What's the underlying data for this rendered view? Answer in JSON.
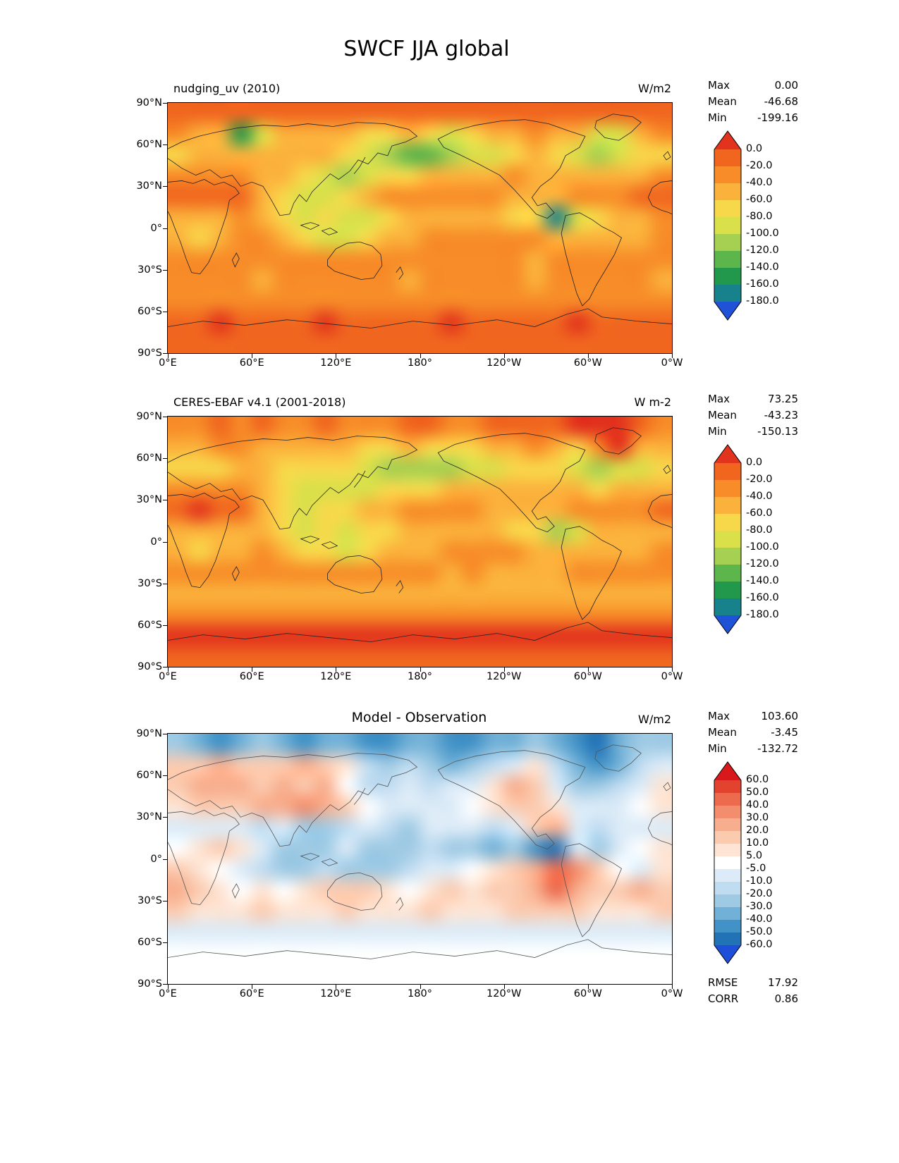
{
  "figure_title": "SWCF JJA global",
  "axes": {
    "yticks": [
      {
        "label": "90°N",
        "pos": 0
      },
      {
        "label": "60°N",
        "pos": 0.1667
      },
      {
        "label": "30°N",
        "pos": 0.3333
      },
      {
        "label": "0°",
        "pos": 0.5
      },
      {
        "label": "30°S",
        "pos": 0.6667
      },
      {
        "label": "60°S",
        "pos": 0.8333
      },
      {
        "label": "90°S",
        "pos": 1
      }
    ],
    "xticks": [
      {
        "label": "0°E",
        "pos": 0
      },
      {
        "label": "60°E",
        "pos": 0.1667
      },
      {
        "label": "120°E",
        "pos": 0.3333
      },
      {
        "label": "180°",
        "pos": 0.5
      },
      {
        "label": "120°W",
        "pos": 0.6667
      },
      {
        "label": "60°W",
        "pos": 0.8333
      },
      {
        "label": "0°W",
        "pos": 1
      }
    ]
  },
  "chart_data": [
    {
      "type": "heatmap",
      "title": "nudging_uv (2010)",
      "units": "W/m2",
      "projection": "equirectangular",
      "lon_range": [
        0,
        360
      ],
      "lat_range": [
        90,
        -90
      ],
      "stats_labels": {
        "max": "Max",
        "mean": "Mean",
        "min": "Min"
      },
      "stats": {
        "max": "0.00",
        "mean": "-46.68",
        "min": "-199.16"
      },
      "colorbar": {
        "extend": "both",
        "levels": [
          0,
          -20,
          -40,
          -60,
          -80,
          -100,
          -120,
          -140,
          -160,
          -180
        ],
        "colors": [
          "#e2331e",
          "#f0661f",
          "#f78c28",
          "#fbb23c",
          "#f8d84b",
          "#d9e04a",
          "#a6d051",
          "#5cb64c",
          "#22984c",
          "#17828c",
          "#2052d8"
        ]
      },
      "grid": {
        "lon_step": 15,
        "lat_step": 15,
        "values": [
          [
            -15,
            -14,
            -16,
            -18,
            -15,
            -14,
            -16,
            -15,
            -17,
            -20,
            -16,
            -13,
            -14,
            -16,
            -18,
            -15,
            -14,
            -16,
            -18,
            -15,
            -14,
            -15,
            -13,
            -15
          ],
          [
            -35,
            -45,
            -60,
            -150,
            -90,
            -55,
            -45,
            -50,
            -60,
            -75,
            -65,
            -55,
            -80,
            -95,
            -70,
            -55,
            -45,
            -40,
            -50,
            -60,
            -90,
            -100,
            -60,
            -40
          ],
          [
            -65,
            -55,
            -48,
            -45,
            -42,
            -46,
            -52,
            -58,
            -75,
            -95,
            -115,
            -125,
            -130,
            -120,
            -100,
            -85,
            -65,
            -55,
            -70,
            -90,
            -110,
            -100,
            -80,
            -70
          ],
          [
            -30,
            -26,
            -24,
            -30,
            -42,
            -55,
            -72,
            -92,
            -102,
            -82,
            -70,
            -62,
            -60,
            -55,
            -50,
            -46,
            -40,
            -46,
            -52,
            -56,
            -60,
            -54,
            -44,
            -35
          ],
          [
            -14,
            -12,
            -14,
            -20,
            -58,
            -80,
            -92,
            -82,
            -62,
            -46,
            -40,
            -35,
            -34,
            -30,
            -34,
            -40,
            -50,
            -60,
            -46,
            -34,
            -30,
            -25,
            -20,
            -15
          ],
          [
            -50,
            -55,
            -45,
            -40,
            -50,
            -70,
            -90,
            -80,
            -92,
            -85,
            -70,
            -60,
            -55,
            -50,
            -55,
            -60,
            -70,
            -80,
            -170,
            -90,
            -62,
            -50,
            -45,
            -40
          ],
          [
            -52,
            -62,
            -50,
            -40,
            -35,
            -42,
            -62,
            -82,
            -92,
            -72,
            -55,
            -45,
            -40,
            -34,
            -30,
            -30,
            -34,
            -40,
            -55,
            -50,
            -46,
            -52,
            -42,
            -35
          ],
          [
            -30,
            -34,
            -30,
            -26,
            -25,
            -30,
            -34,
            -30,
            -26,
            -22,
            -25,
            -30,
            -30,
            -34,
            -30,
            -34,
            -40,
            -44,
            -38,
            -30,
            -34,
            -30,
            -26,
            -30
          ],
          [
            -40,
            -38,
            -36,
            -40,
            -42,
            -40,
            -38,
            -36,
            -35,
            -38,
            -40,
            -42,
            -40,
            -38,
            -36,
            -38,
            -40,
            -42,
            -40,
            -38,
            -36,
            -38,
            -40,
            -42
          ],
          [
            -30,
            -30,
            -30,
            -30,
            -30,
            -30,
            -30,
            -30,
            -30,
            -30,
            -30,
            -30,
            -30,
            -30,
            -30,
            -30,
            -30,
            -30,
            -30,
            -30,
            -30,
            -30,
            -30,
            -30
          ],
          [
            -14,
            -10,
            0,
            -12,
            -15,
            -10,
            -14,
            0,
            -12,
            -15,
            -10,
            -14,
            -12,
            0,
            -15,
            -10,
            -12,
            -14,
            -10,
            0,
            -15,
            -12,
            -10,
            -14
          ],
          [
            -12,
            -10,
            -12,
            -14,
            -12,
            -10,
            -12,
            -14,
            -12,
            -10,
            -12,
            -14,
            -12,
            -10,
            -12,
            -14,
            -12,
            -10,
            -12,
            -14,
            -12,
            -10,
            -12,
            -14
          ]
        ]
      }
    },
    {
      "type": "heatmap",
      "title": "CERES-EBAF v4.1 (2001-2018)",
      "units": "W m-2",
      "projection": "equirectangular",
      "lon_range": [
        0,
        360
      ],
      "lat_range": [
        90,
        -90
      ],
      "stats_labels": {
        "max": "Max",
        "mean": "Mean",
        "min": "Min"
      },
      "stats": {
        "max": "73.25",
        "mean": "-43.23",
        "min": "-150.13"
      },
      "colorbar": {
        "extend": "both",
        "levels": [
          0,
          -20,
          -40,
          -60,
          -80,
          -100,
          -120,
          -140,
          -160,
          -180
        ],
        "colors": [
          "#e2331e",
          "#f0661f",
          "#f78c28",
          "#fbb23c",
          "#f8d84b",
          "#d9e04a",
          "#a6d051",
          "#5cb64c",
          "#22984c",
          "#17828c",
          "#2052d8"
        ]
      },
      "grid": {
        "lon_step": 15,
        "lat_step": 15,
        "values": [
          [
            -25,
            -22,
            -20,
            -24,
            -20,
            -22,
            -25,
            -20,
            -22,
            -26,
            -22,
            -18,
            -20,
            -24,
            -22,
            -20,
            -18,
            -12,
            -8,
            5,
            25,
            20,
            -5,
            -22
          ],
          [
            -42,
            -46,
            -40,
            -36,
            -42,
            -48,
            -52,
            -56,
            -60,
            -66,
            -62,
            -56,
            -62,
            -66,
            -62,
            -56,
            -46,
            -40,
            -46,
            -62,
            -40,
            15,
            -52,
            -42
          ],
          [
            -75,
            -70,
            -62,
            -56,
            -60,
            -66,
            -62,
            -66,
            -80,
            -95,
            -110,
            -116,
            -120,
            -110,
            -95,
            -85,
            -70,
            -66,
            -76,
            -95,
            -105,
            -95,
            -85,
            -78
          ],
          [
            -40,
            -34,
            -30,
            -40,
            -52,
            -62,
            -82,
            -96,
            -100,
            -86,
            -76,
            -70,
            -66,
            -60,
            -56,
            -50,
            -46,
            -50,
            -56,
            -60,
            -66,
            -60,
            -50,
            -44
          ],
          [
            -10,
            2,
            -8,
            -15,
            -56,
            -76,
            -86,
            -80,
            -62,
            -50,
            -46,
            -40,
            -40,
            -36,
            -40,
            -46,
            -56,
            -60,
            -50,
            -40,
            -36,
            -30,
            -25,
            -15
          ],
          [
            -55,
            -60,
            -50,
            -46,
            -56,
            -72,
            -86,
            -80,
            -86,
            -80,
            -70,
            -60,
            -56,
            -50,
            -56,
            -60,
            -66,
            -76,
            -120,
            -86,
            -60,
            -56,
            -50,
            -46
          ],
          [
            -56,
            -66,
            -56,
            -46,
            -40,
            -46,
            -62,
            -80,
            -86,
            -70,
            -56,
            -50,
            -46,
            -40,
            -36,
            -34,
            -40,
            -46,
            -56,
            -50,
            -50,
            -56,
            -46,
            -40
          ],
          [
            -36,
            -40,
            -36,
            -30,
            -30,
            -36,
            -40,
            -36,
            -30,
            -26,
            -30,
            -36,
            -40,
            -44,
            -40,
            -44,
            -50,
            -54,
            -44,
            -36,
            -40,
            -36,
            -30,
            -36
          ],
          [
            -46,
            -44,
            -42,
            -46,
            -48,
            -46,
            -44,
            -42,
            -42,
            -44,
            -46,
            -48,
            -46,
            -44,
            -42,
            -44,
            -46,
            -48,
            -46,
            -44,
            -42,
            -44,
            -46,
            -48
          ],
          [
            -22,
            -22,
            -22,
            -22,
            -22,
            -22,
            -22,
            -22,
            -22,
            -22,
            -22,
            -22,
            -22,
            -22,
            -22,
            -22,
            -22,
            -22,
            -22,
            -22,
            -22,
            -22,
            -22,
            -22
          ],
          [
            3,
            5,
            3,
            5,
            3,
            5,
            3,
            5,
            3,
            5,
            3,
            5,
            3,
            5,
            3,
            5,
            3,
            5,
            3,
            5,
            3,
            5,
            3,
            5
          ],
          [
            -16,
            -14,
            -16,
            -14,
            -16,
            -14,
            -16,
            -14,
            -16,
            -14,
            -16,
            -14,
            -16,
            -14,
            -16,
            -14,
            -16,
            -14,
            -16,
            -14,
            -16,
            -14,
            -16,
            -14
          ]
        ]
      }
    },
    {
      "type": "heatmap",
      "title": "Model - Observation",
      "units": "W/m2",
      "projection": "equirectangular",
      "lon_range": [
        0,
        360
      ],
      "lat_range": [
        90,
        -90
      ],
      "stats_labels": {
        "max": "Max",
        "mean": "Mean",
        "min": "Min"
      },
      "stats": {
        "max": "103.60",
        "mean": "-3.45",
        "min": "-132.72"
      },
      "footer": {
        "rmse_label": "RMSE",
        "rmse": "17.92",
        "corr_label": "CORR",
        "corr": "0.86"
      },
      "colorbar": {
        "extend": "both",
        "levels": [
          60,
          50,
          40,
          30,
          20,
          10,
          5,
          -5,
          -10,
          -20,
          -30,
          -40,
          -50,
          -60
        ],
        "colors": [
          "#d7191c",
          "#e2432f",
          "#ec6a4d",
          "#f28e6d",
          "#f7ae8e",
          "#fbcbb0",
          "#fde4d4",
          "#ffffff",
          "#dcebf7",
          "#c0dcf1",
          "#9fcae4",
          "#72b1d7",
          "#4292c7",
          "#2272b6",
          "#1d4fd8"
        ]
      },
      "grid": {
        "lon_step": 15,
        "lat_step": 15,
        "values": [
          [
            -30,
            -35,
            -42,
            -36,
            -30,
            -40,
            -46,
            -40,
            -36,
            -42,
            -46,
            -40,
            -36,
            -42,
            -46,
            -40,
            -36,
            -30,
            -36,
            -46,
            -52,
            -40,
            -30,
            -26
          ],
          [
            12,
            16,
            22,
            14,
            10,
            16,
            22,
            16,
            8,
            -12,
            -22,
            -16,
            -22,
            -32,
            -26,
            -16,
            -10,
            6,
            -16,
            -36,
            -42,
            -32,
            -16,
            -10
          ],
          [
            16,
            22,
            26,
            20,
            14,
            20,
            16,
            20,
            4,
            -12,
            -16,
            -10,
            -16,
            -10,
            -6,
            6,
            22,
            16,
            -6,
            -22,
            -26,
            -16,
            -6,
            6
          ],
          [
            6,
            10,
            16,
            10,
            22,
            26,
            30,
            20,
            10,
            4,
            -6,
            -10,
            -10,
            -6,
            0,
            6,
            10,
            16,
            6,
            -6,
            -10,
            -6,
            0,
            6
          ],
          [
            -6,
            -10,
            -6,
            -10,
            -16,
            -10,
            -22,
            -26,
            -16,
            -10,
            -16,
            -22,
            -10,
            -6,
            -10,
            -16,
            -6,
            10,
            22,
            -10,
            -16,
            -10,
            -6,
            -6
          ],
          [
            0,
            6,
            10,
            6,
            -10,
            -22,
            -26,
            -22,
            -10,
            -22,
            -26,
            -22,
            -16,
            -22,
            -26,
            -32,
            -26,
            -42,
            -52,
            -10,
            -22,
            -10,
            0,
            6
          ],
          [
            10,
            6,
            0,
            -6,
            -16,
            -26,
            -22,
            -16,
            -22,
            -26,
            -22,
            -16,
            -10,
            -6,
            0,
            6,
            10,
            22,
            42,
            32,
            10,
            0,
            -6,
            6
          ],
          [
            26,
            16,
            6,
            0,
            6,
            0,
            6,
            10,
            16,
            10,
            6,
            0,
            6,
            10,
            6,
            10,
            16,
            26,
            42,
            22,
            10,
            16,
            22,
            10
          ],
          [
            10,
            8,
            6,
            8,
            10,
            8,
            6,
            8,
            10,
            8,
            6,
            8,
            10,
            8,
            6,
            8,
            10,
            12,
            16,
            10,
            8,
            6,
            8,
            10
          ],
          [
            -8,
            -10,
            -8,
            -10,
            -8,
            -10,
            -8,
            -10,
            -8,
            -10,
            -8,
            -10,
            -8,
            -10,
            -8,
            -10,
            -8,
            -10,
            -8,
            -10,
            -8,
            -10,
            -8,
            -10
          ],
          [
            -3,
            -2,
            -3,
            -2,
            -3,
            -2,
            -3,
            -2,
            -3,
            -2,
            -3,
            -2,
            -3,
            -2,
            -3,
            -2,
            -3,
            -2,
            -3,
            -2,
            -3,
            -2,
            -3,
            -2
          ],
          [
            0,
            0,
            0,
            0,
            0,
            0,
            0,
            0,
            0,
            0,
            0,
            0,
            0,
            0,
            0,
            0,
            0,
            0,
            0,
            0,
            0,
            0,
            0,
            0
          ]
        ]
      }
    }
  ]
}
